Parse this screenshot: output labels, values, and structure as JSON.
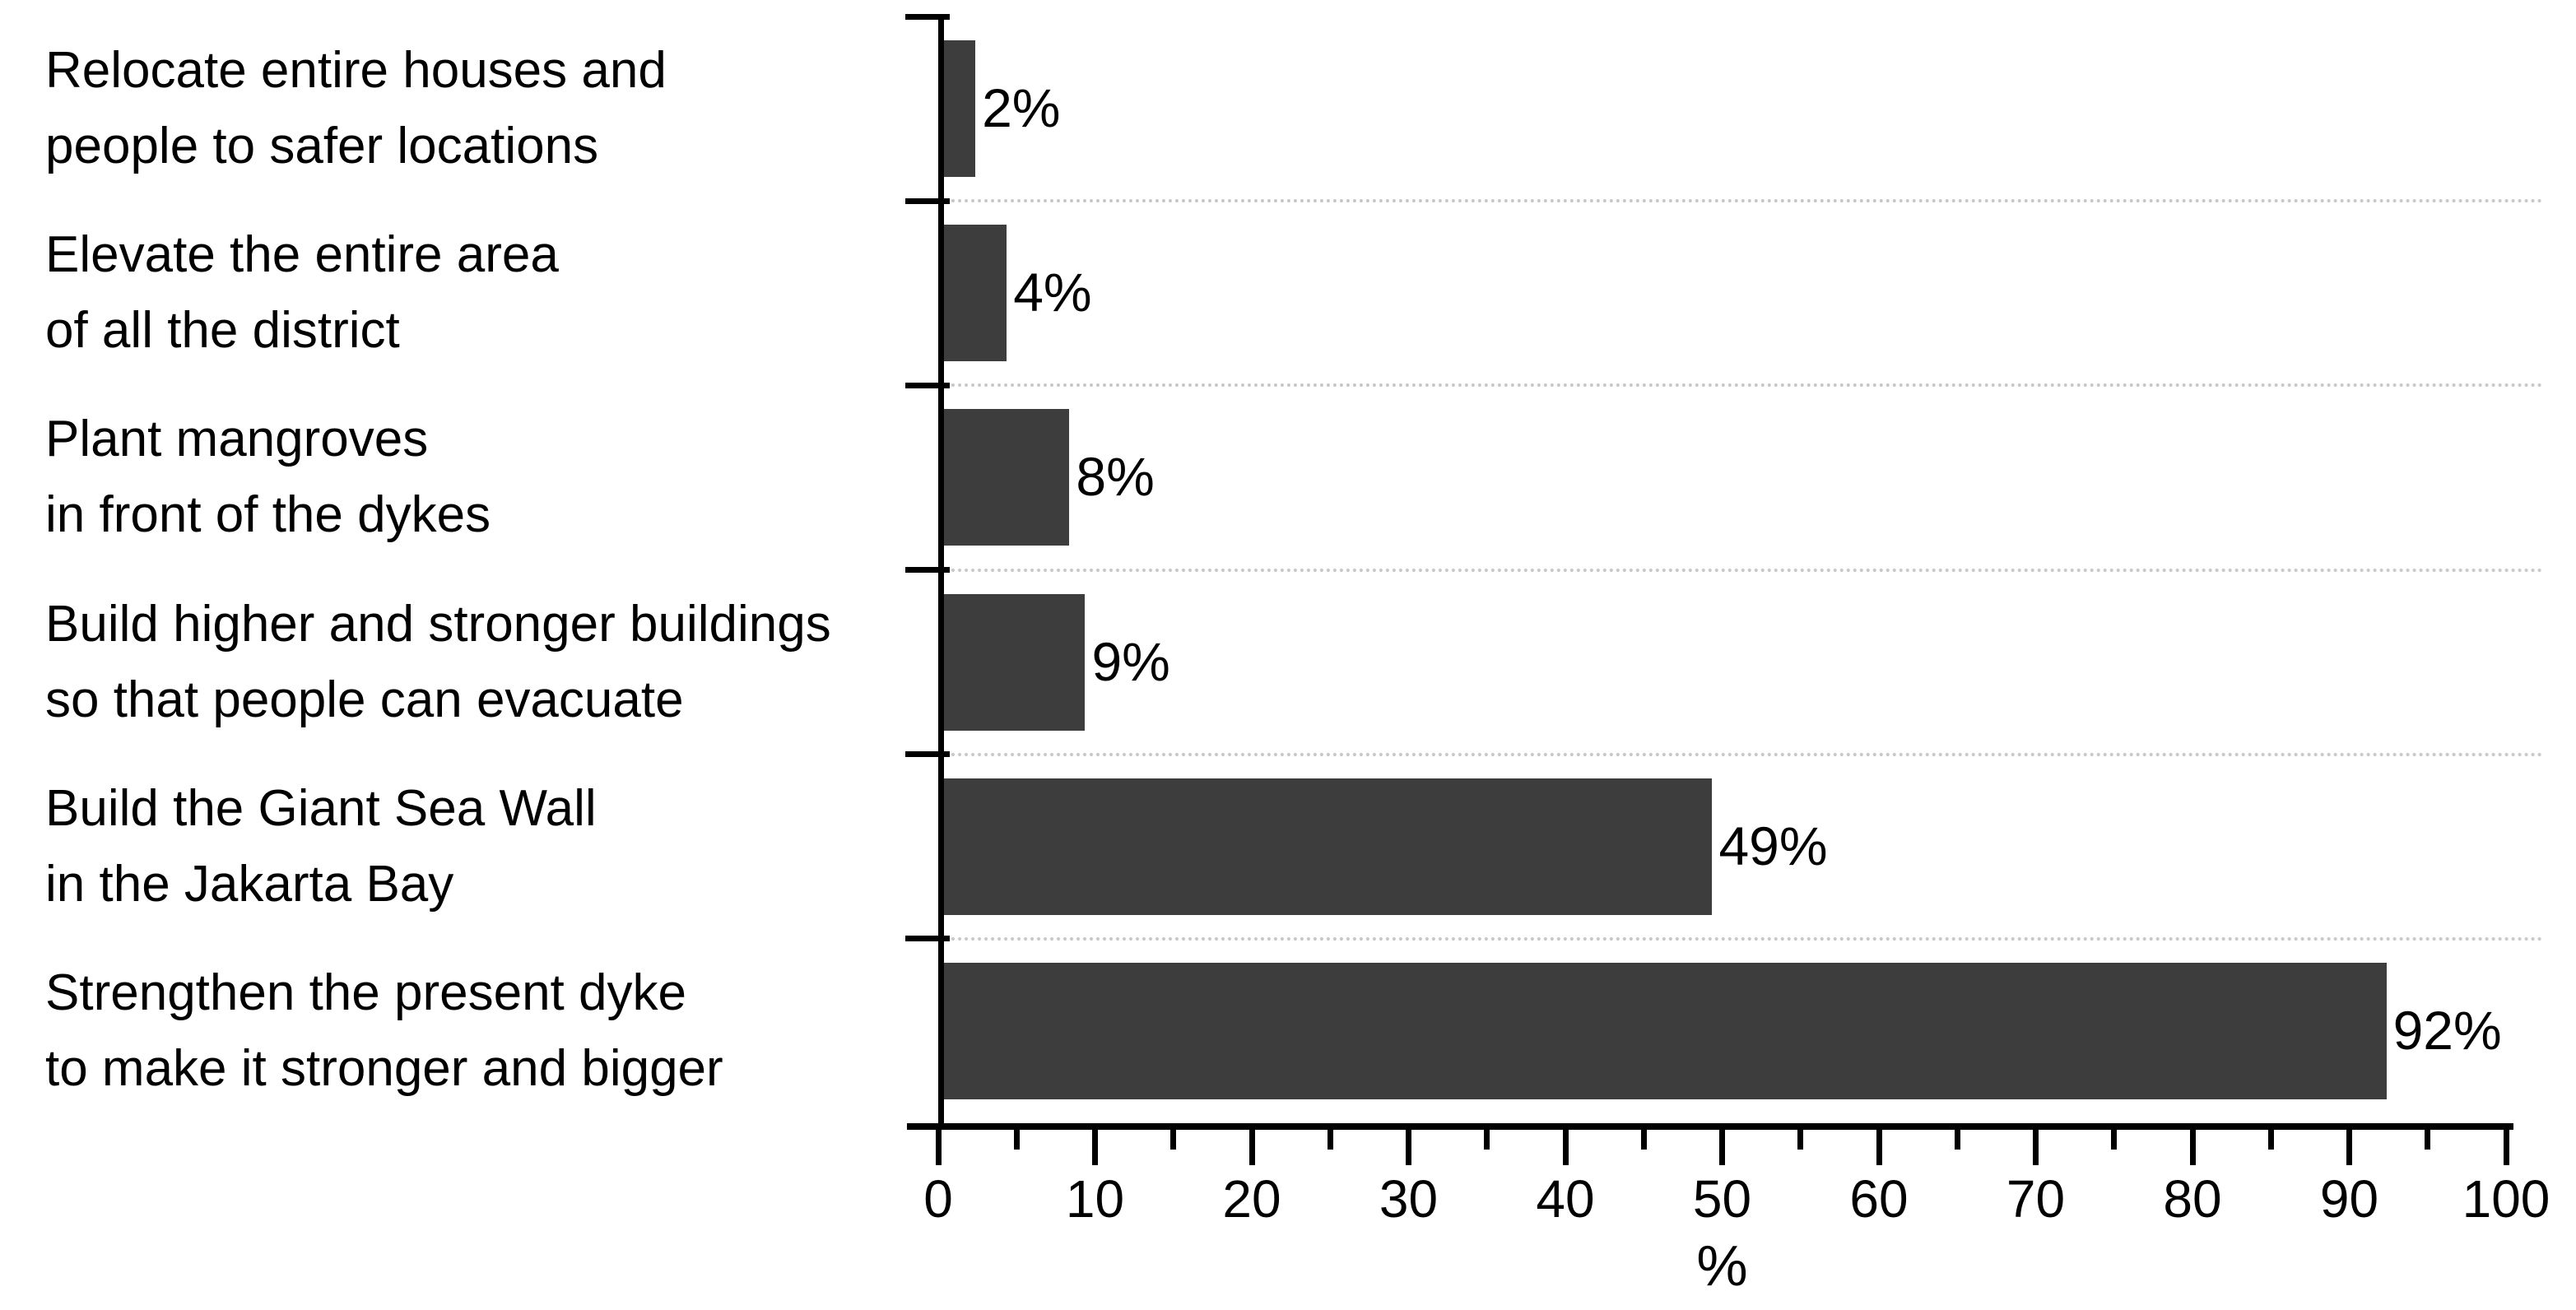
{
  "chart_data": {
    "type": "bar",
    "orientation": "horizontal",
    "title": "",
    "xlabel": "%",
    "ylabel": "",
    "xlim": [
      0,
      100
    ],
    "x_ticks": [
      0,
      10,
      20,
      30,
      40,
      50,
      60,
      70,
      80,
      90,
      100
    ],
    "x_minor_tick_step": 5,
    "grid": "dotted horizontal separator lines between category rows",
    "legend": "none",
    "bar_color": "#3d3d3d",
    "gridline_color": "#c8c8c8",
    "axis_color": "#000000",
    "background_color": "#ffffff",
    "categories": [
      "Relocate entire houses and people to safer locations",
      "Elevate the entire area of all the district",
      "Plant mangroves in front of the dykes",
      "Build higher and stronger buildings so that people can evacuate",
      "Build the Giant Sea Wall in the Jakarta Bay",
      "Strengthen the present dyke to make it stronger and bigger"
    ],
    "categories_lines": [
      [
        "Relocate entire houses and",
        "people to safer locations"
      ],
      [
        "Elevate the entire area",
        "of all the district"
      ],
      [
        "Plant mangroves",
        "in front of the dykes"
      ],
      [
        "Build higher and stronger buildings",
        "so that people can evacuate"
      ],
      [
        "Build the Giant Sea Wall",
        "in the Jakarta Bay"
      ],
      [
        "Strengthen the present dyke",
        "to make it stronger and bigger"
      ]
    ],
    "values": [
      2,
      4,
      8,
      9,
      49,
      92
    ],
    "bar_labels": [
      "2%",
      "4%",
      "8%",
      "9%",
      "49%",
      "92%"
    ]
  }
}
